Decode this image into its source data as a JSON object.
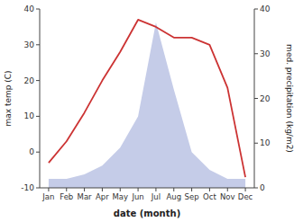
{
  "chart_data": {
    "type": "line",
    "xlabel": "date (month)",
    "ylabel": "max temp (C)",
    "y2label": "med. precipitation (kg/m2)",
    "categories": [
      "Jan",
      "Feb",
      "Mar",
      "Apr",
      "May",
      "Jun",
      "Jul",
      "Aug",
      "Sep",
      "Oct",
      "Nov",
      "Dec"
    ],
    "series": [
      {
        "type": "area",
        "axis": "y2",
        "color": "#c5cce8",
        "values": [
          2,
          2,
          3,
          5,
          9,
          16,
          37,
          22,
          8,
          4,
          2,
          2
        ]
      },
      {
        "type": "line",
        "color": "#cc3333",
        "values": [
          -3,
          3,
          11,
          20,
          28,
          37,
          35,
          32,
          32,
          30,
          18,
          -7
        ]
      }
    ],
    "ylim": [
      -10,
      40
    ],
    "yticks": [
      -10,
      0,
      10,
      20,
      30,
      40
    ],
    "y2lim": [
      0,
      40
    ],
    "y2ticks": [
      0,
      10,
      20,
      30,
      40
    ]
  }
}
